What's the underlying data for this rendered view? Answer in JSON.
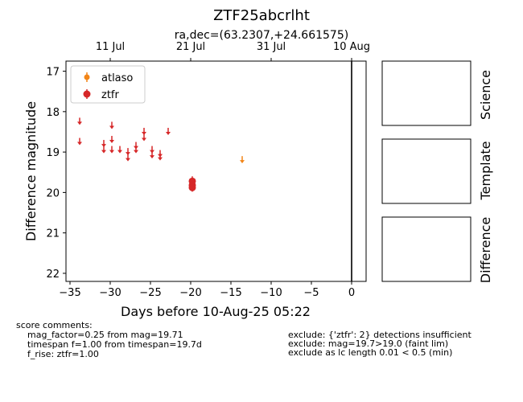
{
  "chart_data": {
    "type": "scatter",
    "title": "ZTF25abcrlht",
    "subtitle": "ra,dec=(63.2307,+24.661575)",
    "xlabel": "Days before 10-Aug-25 05:22",
    "ylabel": "Difference magnitude",
    "xlim": [
      -35.5,
      1.8
    ],
    "ylim": [
      22.2,
      16.75
    ],
    "y_inverted": true,
    "x_ticks": [
      -35,
      -30,
      -25,
      -20,
      -15,
      -10,
      -5,
      0
    ],
    "x_tick_labels": [
      "−35",
      "−30",
      "−25",
      "−20",
      "−15",
      "−10",
      "−5",
      "0"
    ],
    "y_ticks": [
      17,
      18,
      19,
      20,
      21,
      22
    ],
    "y_tick_labels": [
      "17",
      "18",
      "19",
      "20",
      "21",
      "22"
    ],
    "top_ticks": [
      {
        "x": -30,
        "label": "11 Jul"
      },
      {
        "x": -20,
        "label": "21 Jul"
      },
      {
        "x": -10,
        "label": "31 Jul"
      },
      {
        "x": 0,
        "label": "10 Aug"
      }
    ],
    "vline_x": 0,
    "legend_placement": "top-left",
    "series": [
      {
        "name": "atlaso",
        "color": "#f28518",
        "upper_limits": [
          {
            "x": -13.6,
            "y": 19.2
          }
        ],
        "detections": []
      },
      {
        "name": "ztfr",
        "color": "#d62728",
        "upper_limits": [
          {
            "x": -33.8,
            "y": 18.25
          },
          {
            "x": -33.8,
            "y": 18.75
          },
          {
            "x": -30.8,
            "y": 18.8
          },
          {
            "x": -30.8,
            "y": 18.95
          },
          {
            "x": -29.8,
            "y": 18.35
          },
          {
            "x": -29.8,
            "y": 18.7
          },
          {
            "x": -29.8,
            "y": 18.95
          },
          {
            "x": -28.8,
            "y": 18.95
          },
          {
            "x": -27.8,
            "y": 19.0
          },
          {
            "x": -27.8,
            "y": 19.15
          },
          {
            "x": -26.8,
            "y": 18.85
          },
          {
            "x": -26.8,
            "y": 18.95
          },
          {
            "x": -25.8,
            "y": 18.5
          },
          {
            "x": -25.8,
            "y": 18.65
          },
          {
            "x": -24.8,
            "y": 18.95
          },
          {
            "x": -24.8,
            "y": 19.08
          },
          {
            "x": -23.8,
            "y": 19.05
          },
          {
            "x": -23.8,
            "y": 19.13
          },
          {
            "x": -22.8,
            "y": 18.5
          }
        ],
        "detections": [
          {
            "x": -19.8,
            "y": 19.72,
            "err": 0.12
          },
          {
            "x": -19.8,
            "y": 19.82,
            "err": 0.1
          },
          {
            "x": -19.8,
            "y": 19.88,
            "err": 0.1
          }
        ]
      }
    ]
  },
  "panels": [
    "Science",
    "Template",
    "Difference"
  ],
  "comments": {
    "left": [
      "score comments:",
      "mag_factor=0.25 from mag=19.71",
      "timespan f=1.00 from timespan=19.7d",
      "f_rise: ztfr=1.00"
    ],
    "right": [
      "exclude: {'ztfr': 2} detections insufficient",
      "exclude: mag=19.7>19.0 (faint lim)",
      "exclude as lc length 0.01 < 0.5 (min)"
    ]
  }
}
